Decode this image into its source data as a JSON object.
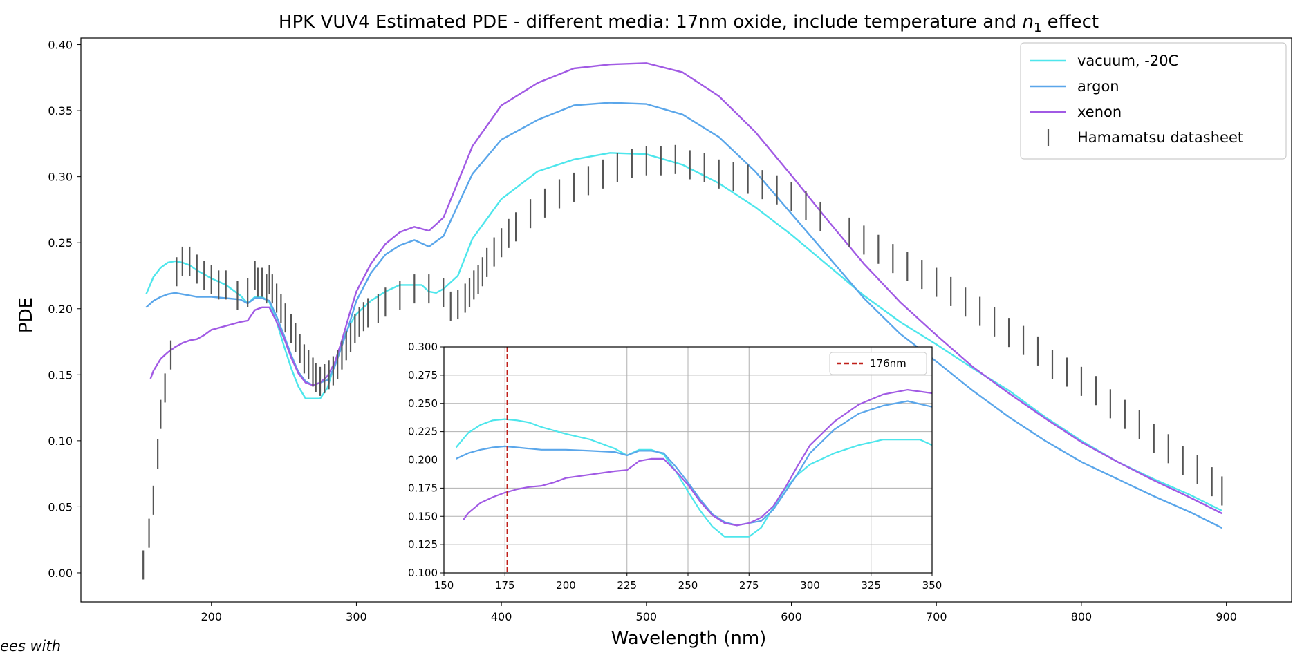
{
  "chart_data": [
    {
      "type": "line",
      "title_prefix": "HPK VUV4 Estimated PDE - different media: 17nm oxide, include temperature and ",
      "title_var": "n",
      "title_sub": "1",
      "title_suffix": " effect",
      "xlabel": "Wavelength (nm)",
      "ylabel": "PDE",
      "xlim": [
        110,
        945
      ],
      "ylim": [
        -0.022,
        0.405
      ],
      "xticks": [
        200,
        300,
        400,
        500,
        600,
        700,
        800,
        900
      ],
      "yticks": [
        "0.00",
        "0.05",
        "0.10",
        "0.15",
        "0.20",
        "0.25",
        "0.30",
        "0.35",
        "0.40"
      ],
      "legend_placement": "top-right",
      "series": [
        {
          "name": "vacuum, -20C",
          "color": "#4ee6ec",
          "x": [
            155,
            160,
            165,
            170,
            175,
            180,
            185,
            190,
            195,
            200,
            210,
            220,
            225,
            230,
            235,
            240,
            245,
            250,
            255,
            260,
            265,
            270,
            275,
            280,
            285,
            290,
            295,
            300,
            310,
            320,
            330,
            340,
            345,
            350,
            355,
            360,
            370,
            380,
            400,
            425,
            450,
            475,
            500,
            525,
            550,
            575,
            600,
            625,
            650,
            675,
            700,
            725,
            750,
            775,
            800,
            825,
            850,
            875,
            897
          ],
          "y": [
            0.211,
            0.224,
            0.231,
            0.235,
            0.236,
            0.235,
            0.233,
            0.229,
            0.226,
            0.223,
            0.218,
            0.21,
            0.204,
            0.209,
            0.209,
            0.205,
            0.19,
            0.172,
            0.155,
            0.141,
            0.132,
            0.132,
            0.132,
            0.14,
            0.158,
            0.175,
            0.187,
            0.196,
            0.206,
            0.213,
            0.218,
            0.218,
            0.218,
            0.213,
            0.212,
            0.215,
            0.225,
            0.253,
            0.283,
            0.304,
            0.313,
            0.318,
            0.317,
            0.309,
            0.295,
            0.277,
            0.256,
            0.233,
            0.21,
            0.19,
            0.173,
            0.155,
            0.138,
            0.118,
            0.1,
            0.084,
            0.071,
            0.059,
            0.047
          ]
        },
        {
          "name": "argon",
          "color": "#5aa6ea",
          "x": [
            155,
            160,
            165,
            170,
            175,
            180,
            185,
            190,
            195,
            200,
            210,
            220,
            225,
            230,
            235,
            240,
            245,
            250,
            255,
            260,
            265,
            270,
            275,
            280,
            285,
            290,
            295,
            300,
            310,
            320,
            330,
            340,
            350,
            360,
            380,
            400,
            425,
            450,
            475,
            500,
            525,
            550,
            575,
            600,
            625,
            650,
            675,
            700,
            725,
            750,
            775,
            800,
            825,
            850,
            875,
            897
          ],
          "y": [
            0.201,
            0.206,
            0.209,
            0.211,
            0.212,
            0.211,
            0.21,
            0.209,
            0.209,
            0.209,
            0.208,
            0.207,
            0.204,
            0.208,
            0.208,
            0.206,
            0.194,
            0.18,
            0.165,
            0.152,
            0.145,
            0.142,
            0.144,
            0.146,
            0.156,
            0.172,
            0.188,
            0.206,
            0.227,
            0.241,
            0.248,
            0.252,
            0.247,
            0.255,
            0.302,
            0.328,
            0.343,
            0.354,
            0.356,
            0.355,
            0.347,
            0.33,
            0.304,
            0.272,
            0.24,
            0.208,
            0.181,
            0.16,
            0.138,
            0.118,
            0.1,
            0.084,
            0.071,
            0.058,
            0.046,
            0.034
          ]
        },
        {
          "name": "xenon",
          "color": "#a15ae4",
          "x": [
            158,
            160,
            165,
            170,
            175,
            180,
            185,
            190,
            195,
            200,
            210,
            220,
            225,
            230,
            235,
            240,
            245,
            250,
            255,
            260,
            265,
            270,
            275,
            280,
            285,
            290,
            295,
            300,
            310,
            320,
            330,
            340,
            350,
            360,
            380,
            400,
            425,
            450,
            475,
            500,
            525,
            550,
            575,
            600,
            625,
            650,
            675,
            700,
            725,
            750,
            775,
            800,
            825,
            850,
            875,
            897
          ],
          "y": [
            0.147,
            0.153,
            0.162,
            0.167,
            0.171,
            0.174,
            0.176,
            0.177,
            0.18,
            0.184,
            0.187,
            0.19,
            0.191,
            0.199,
            0.201,
            0.201,
            0.19,
            0.178,
            0.163,
            0.151,
            0.144,
            0.142,
            0.144,
            0.149,
            0.159,
            0.176,
            0.195,
            0.213,
            0.234,
            0.249,
            0.258,
            0.262,
            0.259,
            0.269,
            0.323,
            0.354,
            0.371,
            0.382,
            0.385,
            0.386,
            0.379,
            0.361,
            0.334,
            0.301,
            0.267,
            0.234,
            0.205,
            0.18,
            0.156,
            0.136,
            0.117,
            0.099,
            0.084,
            0.07,
            0.057,
            0.045
          ]
        },
        {
          "name": "Hamamatsu datasheet",
          "color": "#555555",
          "style": "errorbar-vertical",
          "x": [
            153,
            157,
            160,
            163,
            165,
            168,
            172,
            176,
            180,
            185,
            190,
            195,
            200,
            205,
            210,
            218,
            225,
            230,
            232,
            235,
            238,
            240,
            242,
            245,
            248,
            251,
            255,
            258,
            261,
            264,
            267,
            270,
            272,
            275,
            278,
            281,
            284,
            287,
            290,
            293,
            296,
            299,
            302,
            305,
            308,
            315,
            320,
            330,
            340,
            350,
            360,
            365,
            370,
            375,
            378,
            381,
            384,
            387,
            390,
            395,
            400,
            405,
            410,
            420,
            430,
            440,
            450,
            460,
            470,
            480,
            490,
            500,
            510,
            520,
            530,
            540,
            550,
            560,
            570,
            580,
            590,
            600,
            610,
            620,
            640,
            650,
            660,
            670,
            680,
            690,
            700,
            710,
            720,
            730,
            740,
            750,
            760,
            770,
            780,
            790,
            800,
            810,
            820,
            830,
            840,
            850,
            860,
            870,
            880,
            890,
            897
          ],
          "y": [
            0.006,
            0.03,
            0.055,
            0.09,
            0.12,
            0.14,
            0.165,
            0.228,
            0.236,
            0.236,
            0.23,
            0.225,
            0.222,
            0.218,
            0.218,
            0.21,
            0.212,
            0.225,
            0.22,
            0.22,
            0.215,
            0.222,
            0.215,
            0.208,
            0.2,
            0.193,
            0.185,
            0.178,
            0.17,
            0.162,
            0.158,
            0.152,
            0.148,
            0.145,
            0.147,
            0.15,
            0.153,
            0.158,
            0.165,
            0.172,
            0.178,
            0.185,
            0.19,
            0.194,
            0.197,
            0.2,
            0.205,
            0.21,
            0.215,
            0.215,
            0.212,
            0.202,
            0.203,
            0.208,
            0.212,
            0.218,
            0.222,
            0.228,
            0.235,
            0.243,
            0.25,
            0.257,
            0.262,
            0.272,
            0.28,
            0.287,
            0.292,
            0.297,
            0.302,
            0.307,
            0.31,
            0.312,
            0.312,
            0.313,
            0.309,
            0.307,
            0.302,
            0.3,
            0.298,
            0.294,
            0.29,
            0.285,
            0.278,
            0.27,
            0.258,
            0.252,
            0.245,
            0.238,
            0.232,
            0.226,
            0.22,
            0.213,
            0.205,
            0.198,
            0.19,
            0.182,
            0.176,
            0.168,
            0.158,
            0.152,
            0.145,
            0.138,
            0.128,
            0.12,
            0.112,
            0.102,
            0.094,
            0.085,
            0.078,
            0.069,
            0.062
          ],
          "err": [
            0.011,
            0.011,
            0.011,
            0.011,
            0.011,
            0.011,
            0.011,
            0.011,
            0.011,
            0.011,
            0.011,
            0.011,
            0.011,
            0.011,
            0.011,
            0.011,
            0.011,
            0.011,
            0.011,
            0.011,
            0.011,
            0.011,
            0.011,
            0.011,
            0.011,
            0.011,
            0.011,
            0.011,
            0.011,
            0.011,
            0.011,
            0.011,
            0.011,
            0.011,
            0.011,
            0.011,
            0.011,
            0.011,
            0.011,
            0.011,
            0.011,
            0.011,
            0.011,
            0.011,
            0.011,
            0.011,
            0.011,
            0.011,
            0.011,
            0.011,
            0.011,
            0.011,
            0.011,
            0.011,
            0.011,
            0.011,
            0.011,
            0.011,
            0.011,
            0.011,
            0.011,
            0.011,
            0.011,
            0.011,
            0.011,
            0.011,
            0.011,
            0.011,
            0.011,
            0.011,
            0.011,
            0.011,
            0.011,
            0.011,
            0.011,
            0.011,
            0.011,
            0.011,
            0.011,
            0.011,
            0.011,
            0.011,
            0.011,
            0.011,
            0.011,
            0.011,
            0.011,
            0.011,
            0.011,
            0.011,
            0.011,
            0.011,
            0.011,
            0.011,
            0.011,
            0.011,
            0.011,
            0.011,
            0.011,
            0.011,
            0.011,
            0.011,
            0.011,
            0.011,
            0.011,
            0.011,
            0.011,
            0.011,
            0.011,
            0.011,
            0.011
          ]
        }
      ]
    },
    {
      "type": "line",
      "role": "inset",
      "xlim": [
        150,
        350
      ],
      "ylim": [
        0.1,
        0.3
      ],
      "xticks": [
        150,
        175,
        200,
        225,
        250,
        275,
        300,
        325,
        350
      ],
      "yticks": [
        "0.100",
        "0.125",
        "0.150",
        "0.175",
        "0.200",
        "0.225",
        "0.250",
        "0.275",
        "0.300"
      ],
      "grid": true,
      "legend_placement": "top-right",
      "vline": {
        "x": 176,
        "label": "176nm",
        "color": "#c0201a"
      },
      "series_ref": [
        "vacuum, -20C",
        "argon",
        "xenon"
      ]
    }
  ],
  "footnote": "ees with"
}
